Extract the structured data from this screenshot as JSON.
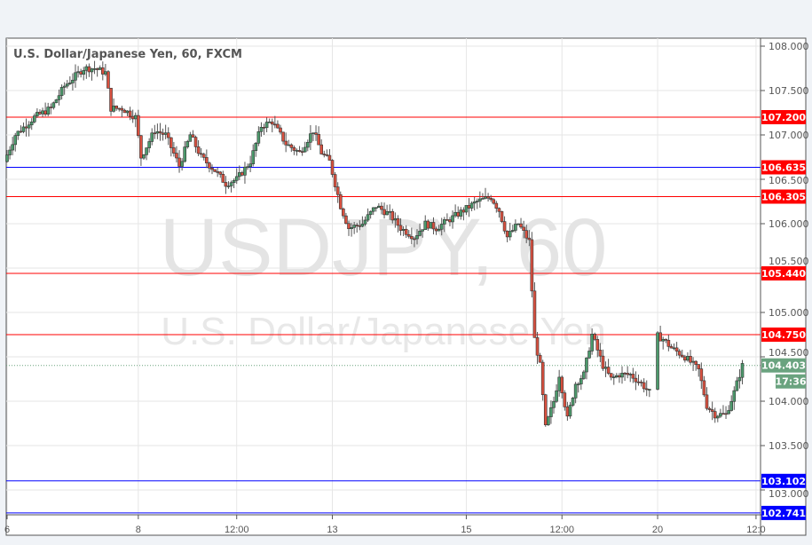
{
  "chart_data": {
    "type": "candlestick",
    "title": "U.S. Dollar/Japanese Yen, 60, FXCM",
    "watermark_symbol": "USDJPY, 60",
    "watermark_name": "U.S. Dollar/Japanese Yen",
    "ylim": [
      102.7,
      108.1
    ],
    "y_ticks": [
      "108.000",
      "107.500",
      "107.000",
      "106.500",
      "106.000",
      "105.500",
      "105.000",
      "104.500",
      "104.000",
      "103.500",
      "103.000"
    ],
    "x_ticks": [
      {
        "label": "6",
        "bar": 0
      },
      {
        "label": "8",
        "bar": 48
      },
      {
        "label": "12:00",
        "bar": 84
      },
      {
        "label": "13",
        "bar": 119
      },
      {
        "label": "15",
        "bar": 168
      },
      {
        "label": "12:00",
        "bar": 203
      },
      {
        "label": "20",
        "bar": 238
      },
      {
        "label": "12:0",
        "bar": 274
      }
    ],
    "grid": true,
    "bars_closes": [
      [
        0,
        106.7
      ],
      [
        4,
        107.0
      ],
      [
        11,
        107.2
      ],
      [
        17,
        107.3
      ],
      [
        22,
        107.55
      ],
      [
        29,
        107.75
      ],
      [
        33,
        107.75
      ],
      [
        37,
        107.7
      ],
      [
        39,
        107.3
      ],
      [
        43,
        107.3
      ],
      [
        48,
        107.2
      ],
      [
        50,
        106.75
      ],
      [
        55,
        107.05
      ],
      [
        59,
        107.0
      ],
      [
        64,
        106.65
      ],
      [
        68,
        107.0
      ],
      [
        72,
        106.75
      ],
      [
        77,
        106.6
      ],
      [
        81,
        106.45
      ],
      [
        85,
        106.5
      ],
      [
        90,
        106.7
      ],
      [
        94,
        107.1
      ],
      [
        98,
        107.15
      ],
      [
        103,
        106.9
      ],
      [
        108,
        106.8
      ],
      [
        113,
        107.05
      ],
      [
        116,
        106.8
      ],
      [
        119,
        106.7
      ],
      [
        123,
        106.2
      ],
      [
        126,
        105.95
      ],
      [
        131,
        106.0
      ],
      [
        136,
        106.2
      ],
      [
        141,
        106.1
      ],
      [
        145,
        105.95
      ],
      [
        150,
        105.85
      ],
      [
        154,
        106.0
      ],
      [
        158,
        105.95
      ],
      [
        163,
        106.05
      ],
      [
        168,
        106.15
      ],
      [
        173,
        106.25
      ],
      [
        178,
        106.3
      ],
      [
        181,
        106.15
      ],
      [
        184,
        105.85
      ],
      [
        188,
        106.0
      ],
      [
        192,
        105.8
      ],
      [
        194,
        104.7
      ],
      [
        196,
        104.4
      ],
      [
        198,
        103.7
      ],
      [
        201,
        104.0
      ],
      [
        203,
        104.3
      ],
      [
        206,
        103.8
      ],
      [
        209,
        104.2
      ],
      [
        212,
        104.3
      ],
      [
        215,
        104.75
      ],
      [
        219,
        104.4
      ],
      [
        222,
        104.25
      ],
      [
        225,
        104.3
      ],
      [
        229,
        104.3
      ],
      [
        233,
        104.2
      ],
      [
        236,
        104.1
      ],
      [
        238,
        104.75
      ],
      [
        241,
        104.7
      ],
      [
        244,
        104.6
      ],
      [
        249,
        104.5
      ],
      [
        254,
        104.35
      ],
      [
        257,
        103.95
      ],
      [
        260,
        103.85
      ],
      [
        264,
        103.85
      ],
      [
        267,
        104.1
      ],
      [
        270,
        104.4
      ]
    ],
    "levels": [
      {
        "price": 107.2,
        "label": "107.200",
        "line": "#ff0000",
        "box": "#ff0000"
      },
      {
        "price": 106.635,
        "label": "106.635",
        "line": "#0000ff",
        "box": "#ff0000"
      },
      {
        "price": 106.305,
        "label": "106.305",
        "line": "#ff0000",
        "box": "#ff0000"
      },
      {
        "price": 105.44,
        "label": "105.440",
        "line": "#ff0000",
        "box": "#ff0000"
      },
      {
        "price": 104.75,
        "label": "104.750",
        "line": "#ff0000",
        "box": "#ff0000"
      },
      {
        "price": 103.102,
        "label": "103.102",
        "line": "#0000ff",
        "box": "#0000ff"
      },
      {
        "price": 102.741,
        "label": "102.741",
        "line": "#0000ff",
        "box": "#0000ff"
      }
    ],
    "last_price": {
      "price": 104.403,
      "label": "104.403",
      "countdown": "17:36",
      "color": "#6aa37f"
    },
    "colors": {
      "up": "#4c9a6c",
      "down": "#d9503f",
      "outline": "#333333",
      "grid": "#e6e6e6"
    }
  }
}
